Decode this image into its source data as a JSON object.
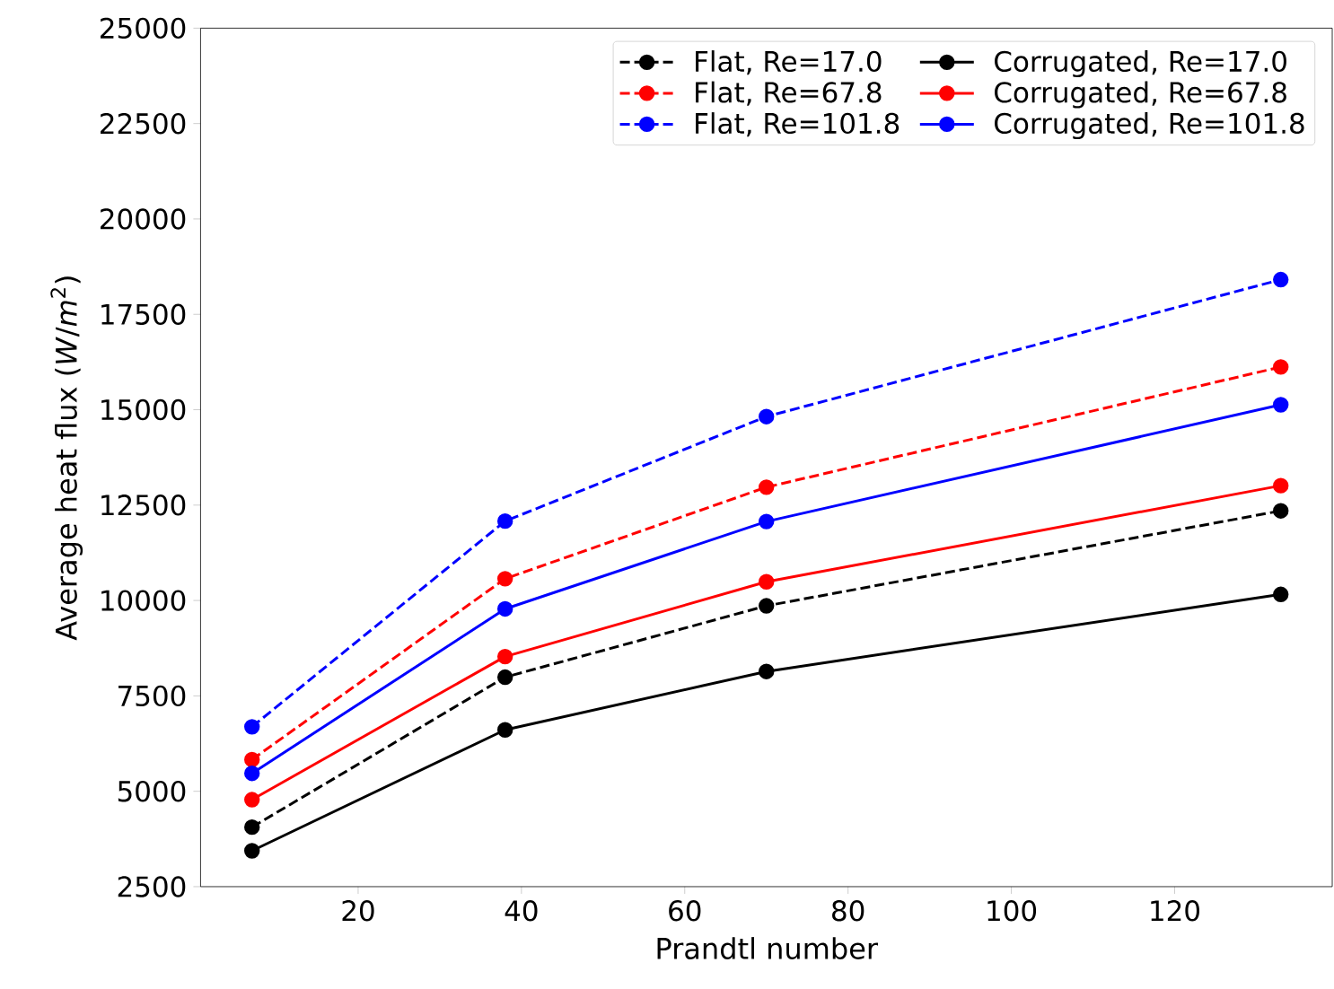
{
  "chart_data": {
    "type": "line",
    "xlabel": "Prandtl number",
    "ylabel": "Average heat flux (*W*/*m*$^{2}$)",
    "x": [
      7,
      38,
      70,
      133
    ],
    "series": [
      {
        "name": "Flat, Re=17.0",
        "color": "#000000",
        "line_style": "dashed",
        "values": [
          4060,
          7990,
          9860,
          12350
        ]
      },
      {
        "name": "Flat, Re=67.8",
        "color": "#ff0000",
        "line_style": "dashed",
        "values": [
          5830,
          10570,
          12970,
          16120
        ]
      },
      {
        "name": "Flat, Re=101.8",
        "color": "#0000ff",
        "line_style": "dashed",
        "values": [
          6690,
          12080,
          14820,
          18410
        ]
      },
      {
        "name": "Corrugated, Re=17.0",
        "color": "#000000",
        "line_style": "solid",
        "values": [
          3440,
          6610,
          8140,
          10160
        ]
      },
      {
        "name": "Corrugated, Re=67.8",
        "color": "#ff0000",
        "line_style": "solid",
        "values": [
          4780,
          8530,
          10490,
          13010
        ]
      },
      {
        "name": "Corrugated, Re=101.8",
        "color": "#0000ff",
        "line_style": "solid",
        "values": [
          5470,
          9780,
          12070,
          15130
        ]
      }
    ],
    "marker": "circle",
    "legend": "top right",
    "grid": false,
    "xlim": [
      0.7,
      139.3
    ],
    "ylim": [
      2500,
      25000
    ],
    "xticks": [
      20,
      40,
      60,
      80,
      100,
      120
    ],
    "yticks": [
      2500,
      5000,
      7500,
      10000,
      12500,
      15000,
      17500,
      20000,
      22500,
      25000
    ]
  }
}
